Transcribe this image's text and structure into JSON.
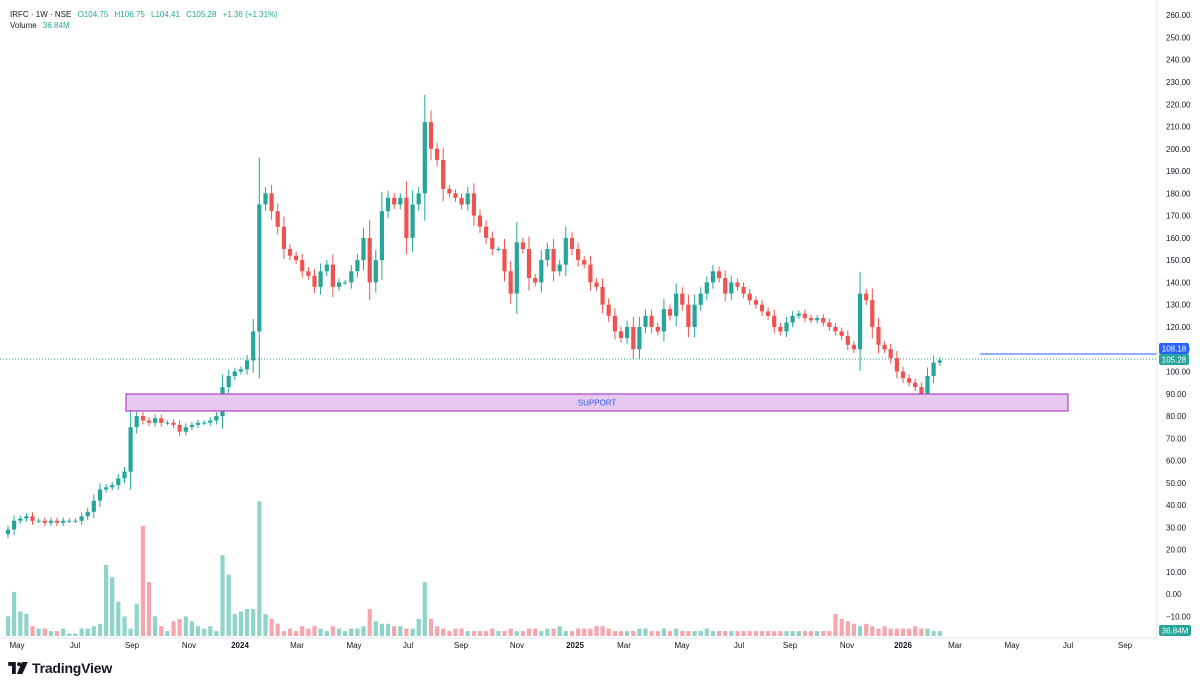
{
  "header": {
    "symbol": "IRFC · 1W · NSE",
    "open": "O104.75",
    "high": "H106.75",
    "low": "L104.41",
    "close": "C105.28",
    "change": "+1.36 (+1.31%)",
    "volume_label": "Volume",
    "volume_value": "36.84M"
  },
  "brand": {
    "name": "TradingView"
  },
  "colors": {
    "up": "#26a69a",
    "down": "#ef5350",
    "up_volume": "#8fd3c9",
    "down_volume": "#f7a6ad",
    "support_fill": "#e7c9f0",
    "support_border": "#b03fc2",
    "level_line": "#2962ff",
    "price_line": "#26a69a"
  },
  "chart_data": {
    "type": "candlestick",
    "title": "",
    "y_axis": {
      "ticks": [
        "260.00",
        "250.00",
        "240.00",
        "230.00",
        "220.00",
        "210.00",
        "200.00",
        "190.00",
        "180.00",
        "170.00",
        "160.00",
        "150.00",
        "140.00",
        "130.00",
        "120.00",
        "110.00",
        "100.00",
        "90.00",
        "80.00",
        "70.00",
        "60.00",
        "50.00",
        "40.00",
        "30.00",
        "20.00",
        "10.00",
        "0.00",
        "−10.00"
      ],
      "range": [
        -15,
        265
      ]
    },
    "x_axis": {
      "labels": [
        {
          "text": "May",
          "bold": false
        },
        {
          "text": "Jul",
          "bold": false
        },
        {
          "text": "Sep",
          "bold": false
        },
        {
          "text": "Nov",
          "bold": false
        },
        {
          "text": "2024",
          "bold": true
        },
        {
          "text": "Mar",
          "bold": false
        },
        {
          "text": "May",
          "bold": false
        },
        {
          "text": "Jul",
          "bold": false
        },
        {
          "text": "Sep",
          "bold": false
        },
        {
          "text": "Nov",
          "bold": false
        },
        {
          "text": "2025",
          "bold": true
        },
        {
          "text": "Mar",
          "bold": false
        },
        {
          "text": "May",
          "bold": false
        },
        {
          "text": "Jul",
          "bold": false
        },
        {
          "text": "Sep",
          "bold": false
        },
        {
          "text": "Nov",
          "bold": false
        },
        {
          "text": "2026",
          "bold": true
        },
        {
          "text": "Mar",
          "bold": false
        },
        {
          "text": "May",
          "bold": false
        },
        {
          "text": "Jul",
          "bold": false
        },
        {
          "text": "Sep",
          "bold": false
        }
      ]
    },
    "support_zone": {
      "label": "SUPPORT",
      "low": 82,
      "high": 89
    },
    "price_levels": [
      {
        "label": "108.18",
        "value": 108.18,
        "color": "#2962ff"
      },
      {
        "label": "105.28",
        "value": 105.28,
        "color": "#26a69a"
      }
    ],
    "volume_badge": {
      "label": "36.84M"
    },
    "close_series": [
      29,
      33,
      34,
      35,
      33,
      33,
      32,
      33,
      32,
      33,
      33,
      33,
      35,
      37,
      42,
      47,
      48,
      49,
      52,
      55,
      75,
      80,
      78,
      77,
      79,
      77,
      77,
      76,
      73,
      75,
      76,
      77,
      77,
      78,
      80,
      93,
      98,
      100,
      101,
      105,
      118,
      175,
      180,
      172,
      165,
      155,
      152,
      150,
      145,
      143,
      138,
      145,
      148,
      138,
      140,
      140,
      145,
      150,
      160,
      140,
      150,
      172,
      178,
      175,
      178,
      160,
      175,
      180,
      212,
      200,
      195,
      182,
      180,
      178,
      175,
      180,
      170,
      165,
      160,
      155,
      155,
      145,
      135,
      158,
      155,
      142,
      140,
      150,
      155,
      145,
      148,
      160,
      155,
      150,
      148,
      140,
      138,
      130,
      125,
      118,
      115,
      120,
      110,
      120,
      125,
      120,
      118,
      128,
      125,
      135,
      130,
      120,
      130,
      135,
      140,
      145,
      142,
      135,
      140,
      138,
      135,
      132,
      130,
      127,
      125,
      120,
      118,
      122,
      125,
      126,
      124,
      123,
      124,
      122,
      120,
      118,
      116,
      112,
      110,
      135,
      132,
      120,
      112,
      110,
      106,
      100,
      97,
      95,
      93,
      90,
      98,
      104,
      105
    ],
    "volume_series": [
      8,
      18,
      10,
      9,
      4,
      3,
      3,
      2,
      2,
      3,
      1,
      1,
      3,
      3,
      4,
      5,
      29,
      24,
      14,
      8,
      3,
      13,
      45,
      22,
      8,
      4,
      2,
      6,
      7,
      8,
      6,
      4,
      3,
      4,
      2,
      33,
      25,
      9,
      10,
      11,
      11,
      55,
      9,
      7,
      5,
      2,
      3,
      2,
      4,
      3,
      4,
      3,
      2,
      4,
      3,
      2,
      3,
      3,
      4,
      11,
      6,
      5,
      5,
      4,
      4,
      3,
      3,
      7,
      22,
      7,
      4,
      3,
      2,
      3,
      3,
      2,
      2,
      2,
      2,
      3,
      2,
      2,
      3,
      2,
      2,
      3,
      3,
      2,
      3,
      3,
      4,
      2,
      2,
      3,
      3,
      3,
      4,
      4,
      3,
      2,
      2,
      2,
      2,
      3,
      3,
      2,
      2,
      3,
      2,
      3,
      2,
      2,
      2,
      2,
      3,
      2,
      2,
      2,
      2,
      2,
      2,
      2,
      2,
      2,
      2,
      2,
      2,
      2,
      2,
      2,
      2,
      2,
      2,
      2,
      2,
      9,
      7,
      6,
      5,
      4,
      5,
      4,
      3,
      4,
      3,
      3,
      3,
      3,
      4,
      3,
      3,
      2,
      2
    ]
  }
}
